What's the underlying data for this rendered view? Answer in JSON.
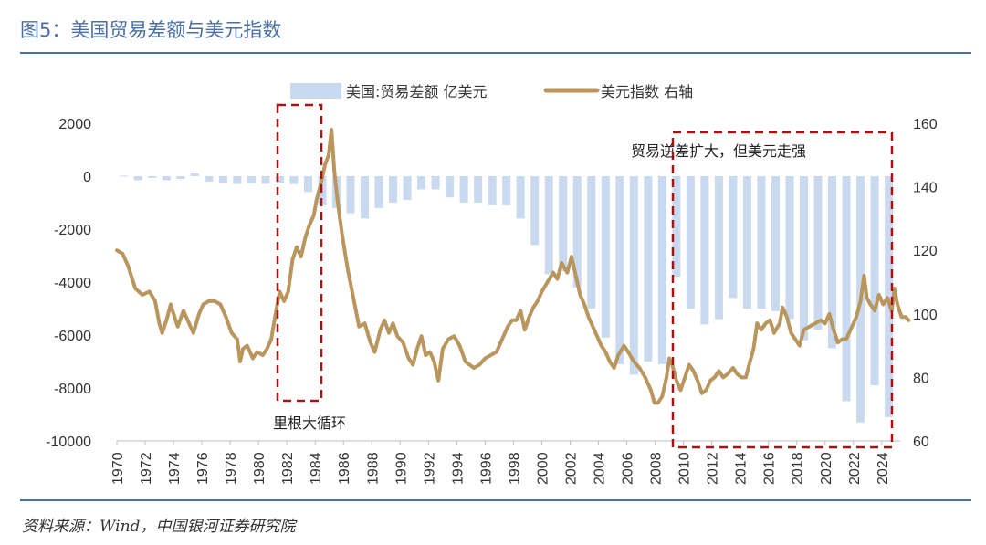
{
  "title": "图5：美国贸易差额与美元指数",
  "source": "资料来源：Wind，中国银河证券研究院",
  "chart_data": {
    "type": "bar+line",
    "legend": [
      {
        "name": "美国:贸易差额 亿美元",
        "kind": "bar",
        "color": "#c9d9ef"
      },
      {
        "name": "美元指数 右轴",
        "kind": "line",
        "color": "#b8965e"
      }
    ],
    "legend_position": "top-center",
    "left_axis": {
      "min": -10000,
      "max": 2000,
      "ticks": [
        "2000",
        "0",
        "-2000",
        "-4000",
        "-6000",
        "-8000",
        "-10000"
      ]
    },
    "right_axis": {
      "min": 60,
      "max": 160,
      "ticks": [
        "160",
        "140",
        "120",
        "100",
        "80",
        "60"
      ]
    },
    "x_labels": [
      "1970",
      "1972",
      "1974",
      "1976",
      "1978",
      "1980",
      "1982",
      "1984",
      "1986",
      "1988",
      "1990",
      "1992",
      "1994",
      "1996",
      "1998",
      "2000",
      "2002",
      "2004",
      "2006",
      "2008",
      "2010",
      "2012",
      "2014",
      "2016",
      "2018",
      "2020",
      "2022",
      "2024"
    ],
    "trade_balance": {
      "years": [
        1970,
        1971,
        1972,
        1973,
        1974,
        1975,
        1976,
        1977,
        1978,
        1979,
        1980,
        1981,
        1982,
        1983,
        1984,
        1985,
        1986,
        1987,
        1988,
        1989,
        1990,
        1991,
        1992,
        1993,
        1994,
        1995,
        1996,
        1997,
        1998,
        1999,
        2000,
        2001,
        2002,
        2003,
        2004,
        2005,
        2006,
        2007,
        2008,
        2009,
        2010,
        2011,
        2012,
        2013,
        2014,
        2015,
        2016,
        2017,
        2018,
        2019,
        2020,
        2021,
        2022,
        2023,
        2024
      ],
      "values": [
        20,
        -150,
        -60,
        -150,
        -100,
        100,
        -200,
        -250,
        -300,
        -270,
        -290,
        -280,
        -300,
        -600,
        -1100,
        -1200,
        -1400,
        -1600,
        -1200,
        -1000,
        -900,
        -500,
        -500,
        -800,
        -1000,
        -1000,
        -1100,
        -1100,
        -1600,
        -2600,
        -3700,
        -3600,
        -4200,
        -5000,
        -6100,
        -7100,
        -7500,
        -7000,
        -7100,
        -3800,
        -5000,
        -5600,
        -5400,
        -4600,
        -5000,
        -5000,
        -5100,
        -5400,
        -6200,
        -5800,
        -6500,
        -8500,
        -9300,
        -7900,
        -9100
      ]
    },
    "dollar_index": {
      "points": [
        [
          1970.0,
          120
        ],
        [
          1970.4,
          119
        ],
        [
          1970.8,
          115
        ],
        [
          1971.3,
          108
        ],
        [
          1971.8,
          106
        ],
        [
          1972.3,
          107
        ],
        [
          1972.7,
          104
        ],
        [
          1973.0,
          97
        ],
        [
          1973.2,
          94
        ],
        [
          1973.5,
          98
        ],
        [
          1973.8,
          103
        ],
        [
          1974.0,
          100
        ],
        [
          1974.3,
          96
        ],
        [
          1974.7,
          101
        ],
        [
          1975.1,
          97
        ],
        [
          1975.4,
          94
        ],
        [
          1975.8,
          100
        ],
        [
          1976.1,
          103
        ],
        [
          1976.5,
          104
        ],
        [
          1976.9,
          104
        ],
        [
          1977.3,
          103
        ],
        [
          1977.7,
          99
        ],
        [
          1978.1,
          94
        ],
        [
          1978.5,
          92
        ],
        [
          1978.7,
          85
        ],
        [
          1978.9,
          89
        ],
        [
          1979.2,
          90
        ],
        [
          1979.6,
          86
        ],
        [
          1979.9,
          88
        ],
        [
          1980.3,
          87
        ],
        [
          1980.6,
          89
        ],
        [
          1980.9,
          92
        ],
        [
          1981.2,
          100
        ],
        [
          1981.5,
          107
        ],
        [
          1981.8,
          104
        ],
        [
          1982.1,
          107
        ],
        [
          1982.4,
          117
        ],
        [
          1982.7,
          121
        ],
        [
          1983.0,
          118
        ],
        [
          1983.3,
          124
        ],
        [
          1983.6,
          128
        ],
        [
          1983.9,
          131
        ],
        [
          1984.1,
          136
        ],
        [
          1984.4,
          141
        ],
        [
          1984.7,
          147
        ],
        [
          1984.95,
          150
        ],
        [
          1985.15,
          158
        ],
        [
          1985.35,
          145
        ],
        [
          1985.6,
          135
        ],
        [
          1985.9,
          125
        ],
        [
          1986.3,
          114
        ],
        [
          1986.7,
          105
        ],
        [
          1987.1,
          96
        ],
        [
          1987.5,
          97
        ],
        [
          1987.9,
          91
        ],
        [
          1988.2,
          88
        ],
        [
          1988.6,
          95
        ],
        [
          1988.9,
          98
        ],
        [
          1989.2,
          94
        ],
        [
          1989.5,
          97
        ],
        [
          1989.8,
          93
        ],
        [
          1990.2,
          91
        ],
        [
          1990.6,
          86
        ],
        [
          1990.9,
          84
        ],
        [
          1991.2,
          89
        ],
        [
          1991.5,
          93
        ],
        [
          1991.8,
          87
        ],
        [
          1992.1,
          88
        ],
        [
          1992.4,
          85
        ],
        [
          1992.7,
          79
        ],
        [
          1993.0,
          89
        ],
        [
          1993.4,
          92
        ],
        [
          1993.8,
          93
        ],
        [
          1994.2,
          90
        ],
        [
          1994.6,
          85
        ],
        [
          1994.9,
          84
        ],
        [
          1995.2,
          83
        ],
        [
          1995.6,
          84
        ],
        [
          1996.0,
          86
        ],
        [
          1996.4,
          87
        ],
        [
          1996.8,
          88
        ],
        [
          1997.2,
          92
        ],
        [
          1997.6,
          96
        ],
        [
          1997.9,
          98
        ],
        [
          1998.2,
          98
        ],
        [
          1998.5,
          101
        ],
        [
          1998.8,
          95
        ],
        [
          1999.1,
          99
        ],
        [
          1999.4,
          102
        ],
        [
          1999.7,
          104
        ],
        [
          2000.0,
          107
        ],
        [
          2000.4,
          110
        ],
        [
          2000.8,
          113
        ],
        [
          2001.1,
          111
        ],
        [
          2001.4,
          116
        ],
        [
          2001.8,
          113
        ],
        [
          2002.1,
          118
        ],
        [
          2002.4,
          112
        ],
        [
          2002.7,
          106
        ],
        [
          2003.0,
          103
        ],
        [
          2003.3,
          99
        ],
        [
          2003.6,
          96
        ],
        [
          2003.9,
          93
        ],
        [
          2004.2,
          90
        ],
        [
          2004.5,
          88
        ],
        [
          2004.8,
          85
        ],
        [
          2005.1,
          83
        ],
        [
          2005.4,
          87
        ],
        [
          2005.8,
          90
        ],
        [
          2006.1,
          88
        ],
        [
          2006.5,
          85
        ],
        [
          2006.9,
          83
        ],
        [
          2007.3,
          80
        ],
        [
          2007.7,
          76
        ],
        [
          2007.95,
          72
        ],
        [
          2008.2,
          72
        ],
        [
          2008.5,
          74
        ],
        [
          2008.8,
          80
        ],
        [
          2009.0,
          86
        ],
        [
          2009.2,
          84
        ],
        [
          2009.5,
          79
        ],
        [
          2009.8,
          76
        ],
        [
          2010.1,
          80
        ],
        [
          2010.4,
          84
        ],
        [
          2010.7,
          82
        ],
        [
          2011.0,
          79
        ],
        [
          2011.3,
          75
        ],
        [
          2011.6,
          76
        ],
        [
          2011.9,
          79
        ],
        [
          2012.2,
          80
        ],
        [
          2012.5,
          82
        ],
        [
          2012.8,
          80
        ],
        [
          2013.1,
          81
        ],
        [
          2013.5,
          83
        ],
        [
          2013.8,
          81
        ],
        [
          2014.1,
          80
        ],
        [
          2014.4,
          80
        ],
        [
          2014.7,
          85
        ],
        [
          2014.95,
          89
        ],
        [
          2015.2,
          97
        ],
        [
          2015.5,
          95
        ],
        [
          2015.8,
          97
        ],
        [
          2016.1,
          98
        ],
        [
          2016.4,
          94
        ],
        [
          2016.8,
          97
        ],
        [
          2017.0,
          102
        ],
        [
          2017.3,
          99
        ],
        [
          2017.6,
          94
        ],
        [
          2017.9,
          92
        ],
        [
          2018.2,
          90
        ],
        [
          2018.5,
          95
        ],
        [
          2018.9,
          96
        ],
        [
          2019.3,
          97
        ],
        [
          2019.7,
          98
        ],
        [
          2020.0,
          97
        ],
        [
          2020.3,
          100
        ],
        [
          2020.6,
          95
        ],
        [
          2020.9,
          91
        ],
        [
          2021.2,
          92
        ],
        [
          2021.5,
          92
        ],
        [
          2021.9,
          96
        ],
        [
          2022.2,
          99
        ],
        [
          2022.5,
          104
        ],
        [
          2022.75,
          112
        ],
        [
          2022.95,
          105
        ],
        [
          2023.2,
          103
        ],
        [
          2023.5,
          101
        ],
        [
          2023.8,
          106
        ],
        [
          2024.1,
          103
        ],
        [
          2024.4,
          105
        ],
        [
          2024.7,
          101
        ],
        [
          2024.9,
          108
        ],
        [
          2025.1,
          103
        ],
        [
          2025.4,
          99
        ],
        [
          2025.7,
          99
        ],
        [
          2025.9,
          98
        ]
      ]
    },
    "annotations": [
      {
        "text": "里根大循环",
        "position": "below box 1981-1984.5"
      },
      {
        "text": "贸易逆差扩大，但美元走强",
        "position": "top of box 2009-2025"
      }
    ]
  }
}
